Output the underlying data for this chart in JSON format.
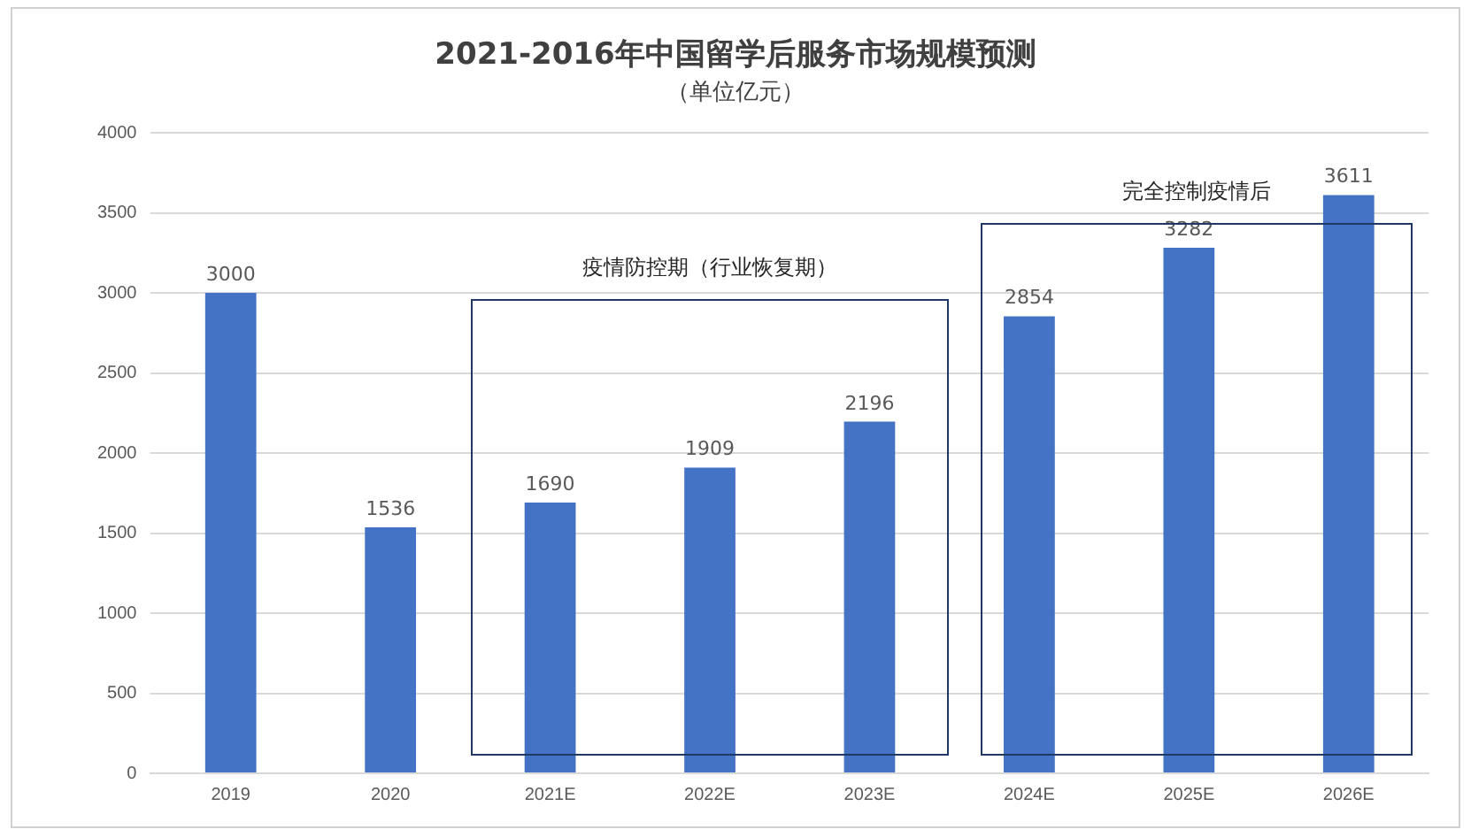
{
  "chart_data": {
    "type": "bar",
    "title": "2021-2016年中国留学后服务市场规模预测",
    "subtitle": "（单位亿元）",
    "categories": [
      "2019",
      "2020",
      "2021E",
      "2022E",
      "2023E",
      "2024E",
      "2025E",
      "2026E"
    ],
    "values": [
      3000,
      1536,
      1690,
      1909,
      2196,
      2854,
      3282,
      3611
    ],
    "color": "#4472c4",
    "ylim": [
      0,
      4000
    ],
    "yticks": [
      0,
      500,
      1000,
      1500,
      2000,
      2500,
      3000,
      3500,
      4000
    ],
    "grid": "y",
    "data_labels": true,
    "annotations": [
      "疫情防控期（行业恢复期）",
      "完全控制疫情后"
    ]
  }
}
